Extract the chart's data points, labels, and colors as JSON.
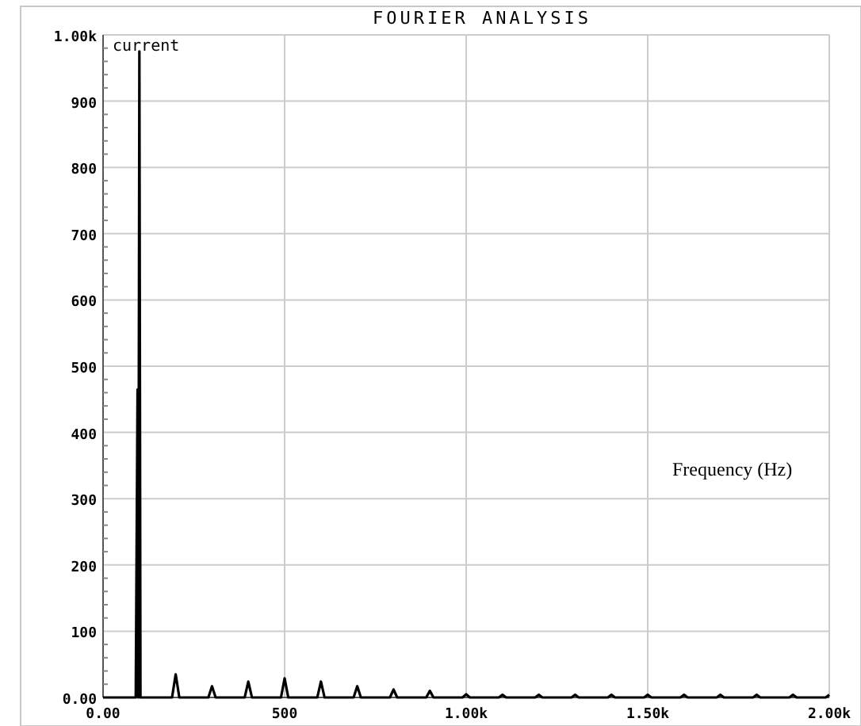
{
  "chart_data": {
    "type": "line",
    "title": "FOURIER ANALYSIS",
    "xlabel": "Frequency (Hz)",
    "legend": "top left",
    "grid": true,
    "line_style": "solid",
    "xlim": [
      0,
      2000
    ],
    "xticks": [
      {
        "value": 0,
        "label": "0.00"
      },
      500,
      {
        "value": 1000,
        "label": "1.00k"
      },
      {
        "value": 1500,
        "label": "1.50k"
      },
      {
        "value": 2000,
        "label": "2.00k"
      }
    ],
    "ylim": [
      0,
      1000
    ],
    "yticks": [
      {
        "value": 0,
        "label": "0.00"
      },
      100,
      200,
      300,
      400,
      500,
      600,
      700,
      800,
      900,
      {
        "value": 1000,
        "label": "1.00k"
      }
    ],
    "series": [
      {
        "name": "current",
        "color": "#000000",
        "x": [
          0,
          90,
          95,
          97,
          100,
          103,
          190,
          200,
          210,
          290,
          300,
          310,
          390,
          400,
          410,
          490,
          500,
          510,
          590,
          600,
          610,
          690,
          700,
          710,
          790,
          800,
          810,
          890,
          900,
          910,
          990,
          1000,
          1010,
          1090,
          1100,
          1110,
          1190,
          1200,
          1210,
          1290,
          1300,
          1310,
          1390,
          1400,
          1410,
          1490,
          1500,
          1510,
          1590,
          1600,
          1610,
          1690,
          1700,
          1710,
          1790,
          1800,
          1810,
          1890,
          1900,
          1910,
          1990,
          2000
        ],
        "values": [
          0,
          0,
          465,
          0,
          975,
          0,
          0,
          35,
          0,
          0,
          17,
          0,
          0,
          24,
          0,
          0,
          29,
          0,
          0,
          24,
          0,
          0,
          17,
          0,
          0,
          12,
          0,
          0,
          10,
          0,
          0,
          5,
          0,
          0,
          4,
          0,
          0,
          4,
          0,
          0,
          4,
          0,
          0,
          4,
          0,
          0,
          4,
          0,
          0,
          4,
          0,
          0,
          4,
          0,
          0,
          4,
          0,
          0,
          4,
          0,
          0,
          4
        ]
      }
    ]
  }
}
